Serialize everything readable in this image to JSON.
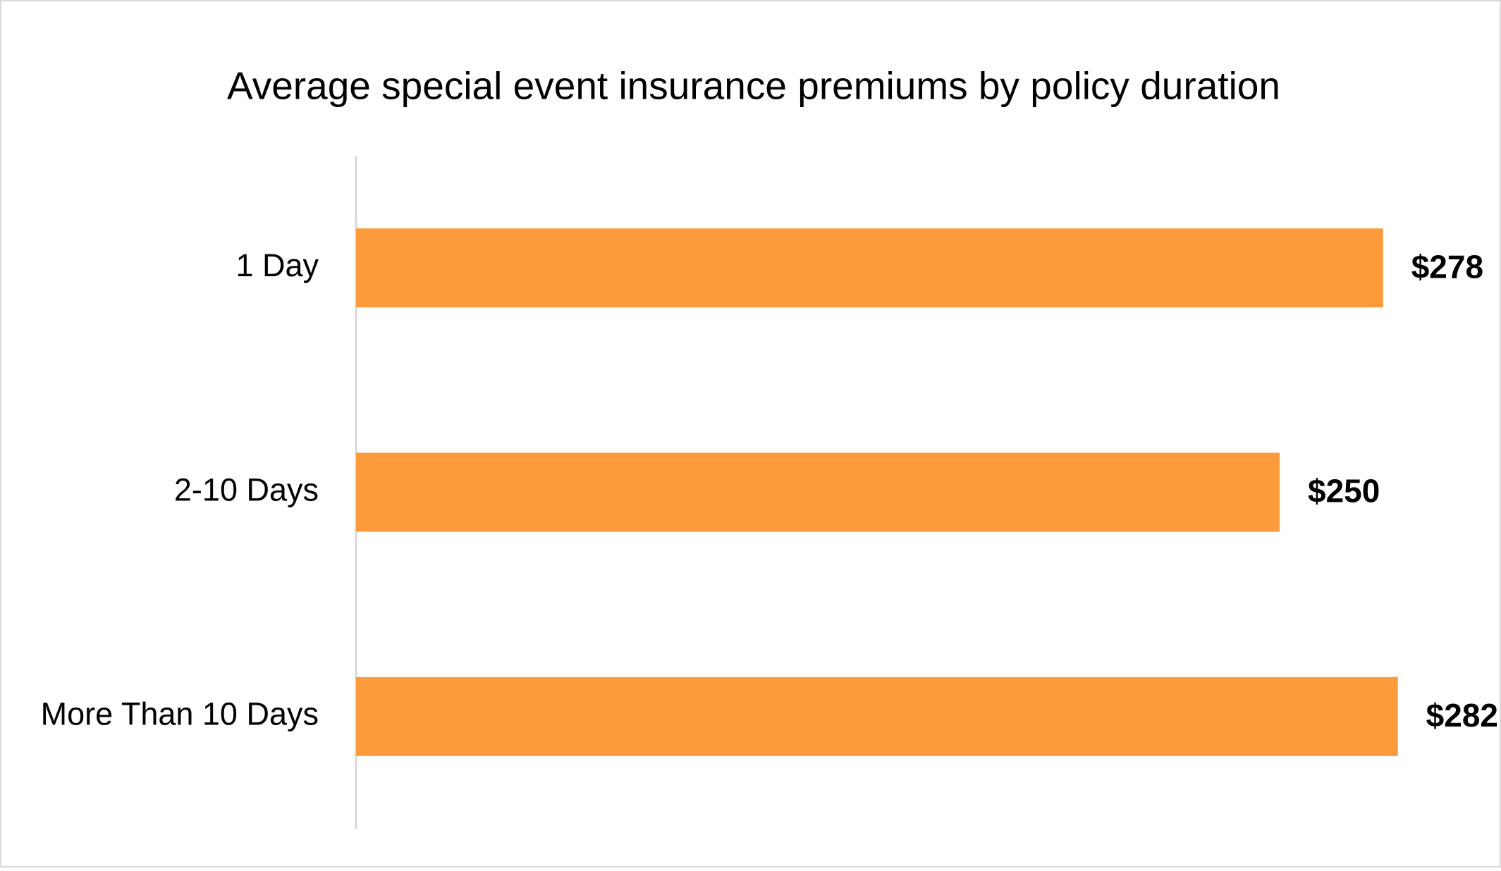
{
  "chart_data": {
    "type": "bar",
    "orientation": "horizontal",
    "title": "Average special event insurance premiums by policy duration",
    "categories": [
      "1 Day",
      "2-10 Days",
      "More Than 10 Days"
    ],
    "values": [
      278,
      250,
      282
    ],
    "value_labels": [
      "$278",
      "$250",
      "$282"
    ],
    "color": "#fd9a3c",
    "xlim": [
      0,
      300
    ],
    "grid": false
  }
}
